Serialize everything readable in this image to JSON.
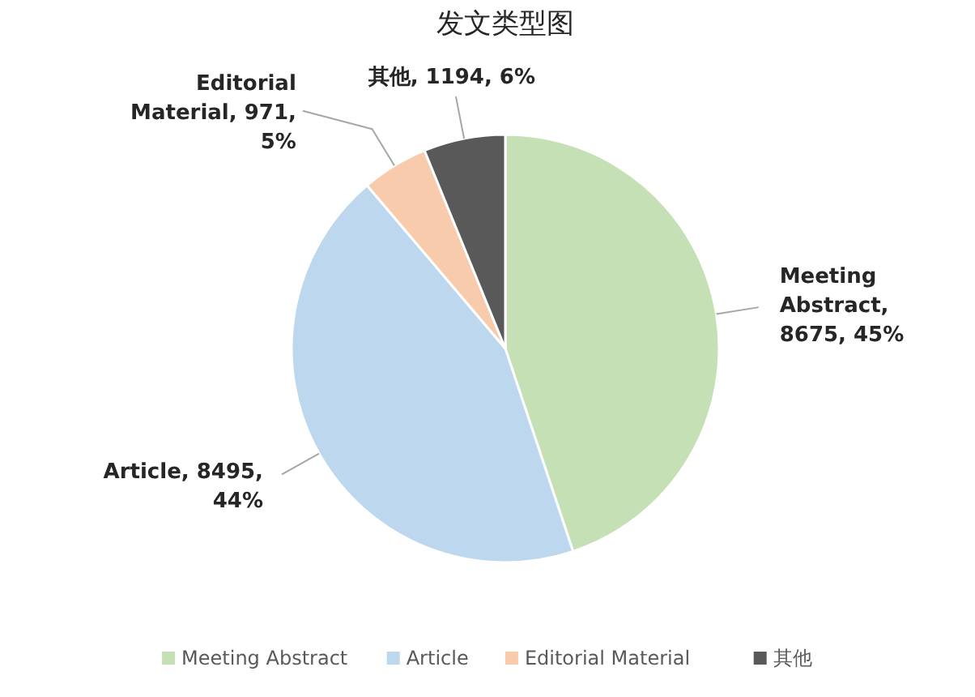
{
  "chart_data": {
    "type": "pie",
    "title": "发文类型图",
    "categories": [
      "Meeting Abstract",
      "Article",
      "Editorial Material",
      "其他"
    ],
    "values": [
      8675,
      8495,
      971,
      1194
    ],
    "colors": [
      "#c5e0b4",
      "#bdd7ee",
      "#f8cbad",
      "#595959"
    ],
    "value_labels": [
      "Meeting Abstract, 8675, 45%",
      "Article, 8495, 44%",
      "Editorial Material, 971, 5%",
      "其他, 1194, 6%"
    ],
    "legend": "bottom"
  }
}
